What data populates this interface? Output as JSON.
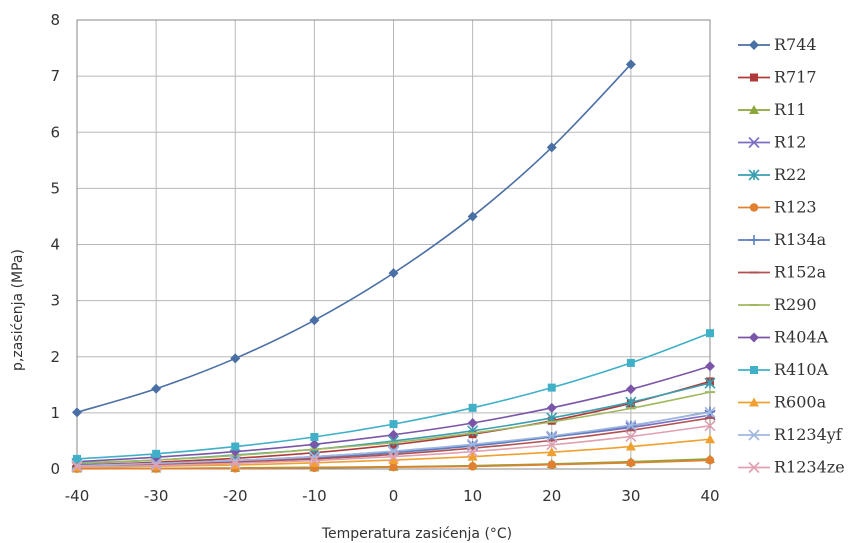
{
  "chart_data": {
    "type": "line",
    "title": "",
    "xlabel": "Temperatura zasićenja (°C)",
    "ylabel": "p,zasićenja (MPa)",
    "x": [
      -40,
      -30,
      -20,
      -10,
      0,
      10,
      20,
      30,
      40
    ],
    "xticks": [
      "-40",
      "-30",
      "-20",
      "-10",
      "0",
      "10",
      "20",
      "30",
      "40"
    ],
    "yticks": [
      "0",
      "1",
      "2",
      "3",
      "4",
      "5",
      "6",
      "7",
      "8"
    ],
    "xlim": [
      -40,
      40
    ],
    "ylim": [
      0,
      8
    ],
    "grid": true,
    "legend_position": "right",
    "series": [
      {
        "name": "R744",
        "color": "#4a6fa5",
        "marker": "diamond",
        "values": [
          1.01,
          1.43,
          1.97,
          2.65,
          3.49,
          4.5,
          5.73,
          7.21,
          null
        ]
      },
      {
        "name": "R717",
        "color": "#b03a3a",
        "marker": "square",
        "values": [
          0.07,
          0.12,
          0.19,
          0.29,
          0.43,
          0.62,
          0.86,
          1.17,
          1.56
        ]
      },
      {
        "name": "R11",
        "color": "#8aa63a",
        "marker": "triangle",
        "values": [
          0.01,
          0.01,
          0.02,
          0.03,
          0.04,
          0.06,
          0.09,
          0.13,
          0.18
        ]
      },
      {
        "name": "R12",
        "color": "#7b6fc4",
        "marker": "x",
        "values": [
          0.06,
          0.1,
          0.15,
          0.22,
          0.31,
          0.42,
          0.57,
          0.74,
          0.96
        ]
      },
      {
        "name": "R22",
        "color": "#3a9fb0",
        "marker": "star",
        "values": [
          0.1,
          0.16,
          0.25,
          0.35,
          0.5,
          0.68,
          0.91,
          1.19,
          1.53
        ]
      },
      {
        "name": "R123",
        "color": "#e08030",
        "marker": "circle",
        "values": [
          0.004,
          0.007,
          0.012,
          0.02,
          0.033,
          0.046,
          0.076,
          0.11,
          0.155
        ]
      },
      {
        "name": "R134a",
        "color": "#5a7fc0",
        "marker": "plus",
        "values": [
          0.05,
          0.08,
          0.13,
          0.2,
          0.29,
          0.41,
          0.57,
          0.77,
          1.02
        ]
      },
      {
        "name": "R152a",
        "color": "#b05050",
        "marker": "dash",
        "values": [
          0.05,
          0.08,
          0.12,
          0.18,
          0.26,
          0.37,
          0.51,
          0.69,
          0.91
        ]
      },
      {
        "name": "R290",
        "color": "#a0b860",
        "marker": "dash",
        "values": [
          0.11,
          0.16,
          0.24,
          0.35,
          0.47,
          0.64,
          0.84,
          1.08,
          1.37
        ]
      },
      {
        "name": "R404A",
        "color": "#7b55a8",
        "marker": "diamond",
        "values": [
          0.13,
          0.21,
          0.31,
          0.44,
          0.61,
          0.82,
          1.09,
          1.42,
          1.83
        ]
      },
      {
        "name": "R410A",
        "color": "#40b0c8",
        "marker": "square",
        "values": [
          0.18,
          0.27,
          0.4,
          0.57,
          0.8,
          1.09,
          1.45,
          1.89,
          2.42
        ]
      },
      {
        "name": "R600a",
        "color": "#f0a030",
        "marker": "triangle",
        "values": [
          0.03,
          0.05,
          0.07,
          0.11,
          0.16,
          0.22,
          0.3,
          0.4,
          0.53
        ]
      },
      {
        "name": "R1234yf",
        "color": "#a0b8e0",
        "marker": "x",
        "values": [
          0.06,
          0.1,
          0.15,
          0.22,
          0.32,
          0.44,
          0.59,
          0.78,
          1.01
        ]
      },
      {
        "name": "R1234ze",
        "color": "#e0a0b0",
        "marker": "x",
        "values": [
          0.04,
          0.06,
          0.1,
          0.15,
          0.22,
          0.31,
          0.43,
          0.58,
          0.77
        ]
      }
    ]
  }
}
